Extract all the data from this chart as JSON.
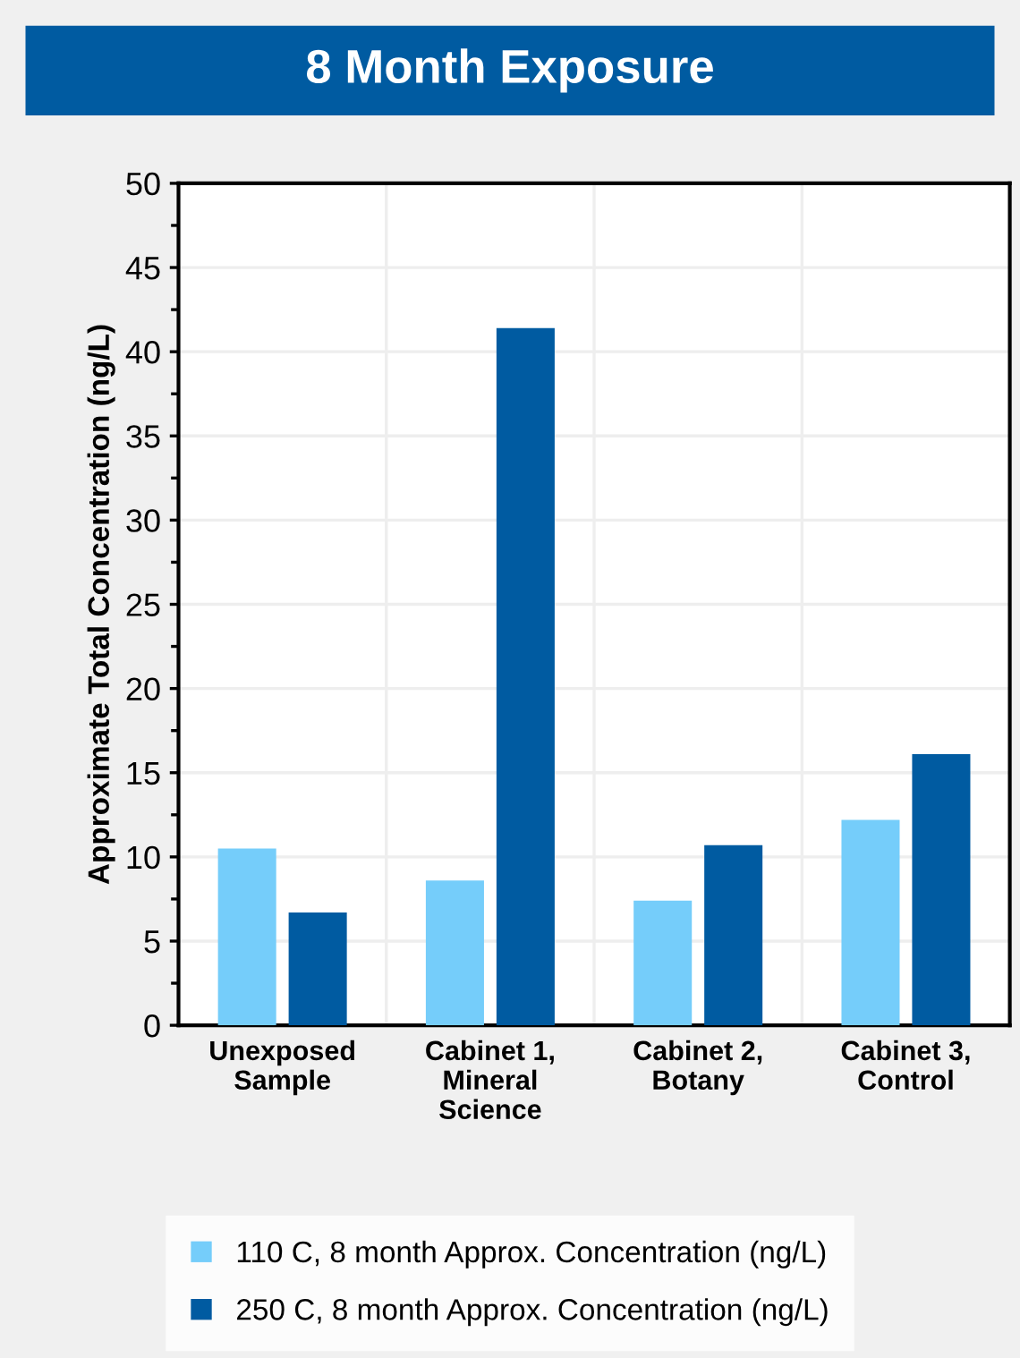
{
  "chart_data": {
    "type": "bar",
    "title": "8 Month Exposure",
    "ylabel": "Approximate Total Concentration (ng/L)",
    "categories": [
      "Unexposed\nSample",
      "Cabinet 1,\nMineral\nScience",
      "Cabinet 2,\nBotany",
      "Cabinet 3,\nControl"
    ],
    "series": [
      {
        "name": "110 C, 8 month Approx. Concentration (ng/L)",
        "color": "#75cdfa",
        "values": [
          10.5,
          8.6,
          7.4,
          12.2
        ]
      },
      {
        "name": "250 C, 8 month Approx. Concentration (ng/L)",
        "color": "#005ba1",
        "values": [
          6.7,
          41.4,
          10.7,
          16.1
        ]
      }
    ],
    "ylim": [
      0,
      50
    ],
    "yticks": [
      0,
      5,
      10,
      15,
      20,
      25,
      30,
      35,
      40,
      45,
      50
    ],
    "grid": true,
    "legend": "bottom"
  }
}
